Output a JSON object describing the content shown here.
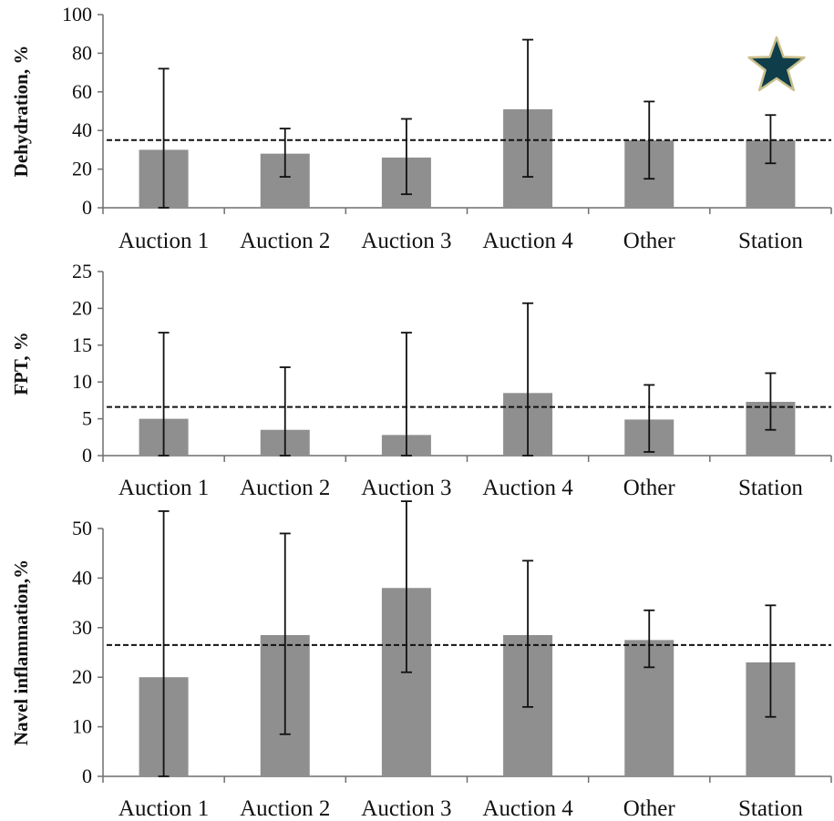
{
  "decoration": {
    "star_icon": "star-icon",
    "star_fill": "#0f3d49",
    "star_stroke": "#c9bf8c"
  },
  "colors": {
    "bar": "#8f8f8f",
    "axis": "#6f6f6f",
    "error": "#111111",
    "reference": "#111111"
  },
  "chart_data": [
    {
      "type": "bar",
      "ylabel": "Dehydration, %",
      "ylim": [
        0,
        100
      ],
      "yticks": [
        0,
        20,
        40,
        60,
        80,
        100
      ],
      "categories": [
        "Auction 1",
        "Auction 2",
        "Auction 3",
        "Auction 4",
        "Other",
        "Station"
      ],
      "values": [
        30,
        28,
        26,
        51,
        35,
        35
      ],
      "error_low": [
        0,
        16,
        7,
        16,
        15,
        23
      ],
      "error_high": [
        72,
        41,
        46,
        87,
        55,
        48
      ],
      "reference_line": 35,
      "grid": false
    },
    {
      "type": "bar",
      "ylabel": "FPT, %",
      "ylim": [
        0,
        25
      ],
      "yticks": [
        0,
        5,
        10,
        15,
        20,
        25
      ],
      "categories": [
        "Auction 1",
        "Auction 2",
        "Auction 3",
        "Auction 4",
        "Other",
        "Station"
      ],
      "values": [
        5,
        3.5,
        2.8,
        8.5,
        4.9,
        7.3
      ],
      "error_low": [
        0,
        0,
        0,
        0,
        0.5,
        3.5
      ],
      "error_high": [
        16.7,
        12,
        16.7,
        20.7,
        9.6,
        11.2
      ],
      "reference_line": 6.6,
      "grid": false
    },
    {
      "type": "bar",
      "ylabel": "Navel inflammation,%",
      "ylim": [
        0,
        55
      ],
      "yticks": [
        0,
        10,
        20,
        30,
        40,
        50
      ],
      "categories": [
        "Auction 1",
        "Auction 2",
        "Auction 3",
        "Auction 4",
        "Other",
        "Station"
      ],
      "values": [
        20,
        28.5,
        38,
        28.5,
        27.5,
        23
      ],
      "error_low": [
        0,
        8.5,
        21,
        14,
        22,
        12
      ],
      "error_high": [
        53.5,
        49,
        55.5,
        43.5,
        33.5,
        34.5
      ],
      "reference_line": 26.5,
      "grid": false
    }
  ]
}
